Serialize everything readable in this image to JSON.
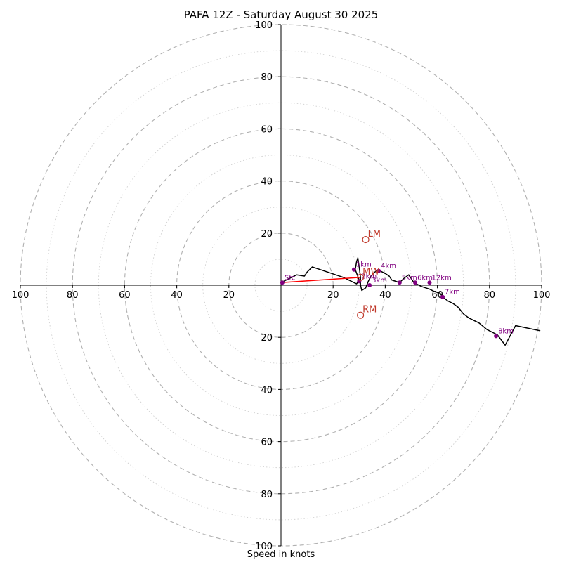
{
  "chart_data": {
    "type": "hodograph",
    "title": "PAFA 12Z - Saturday August 30 2025",
    "xlabel": "Speed in knots",
    "axis_range": [
      -100,
      100
    ],
    "ring_labels_major": [
      20,
      40,
      60,
      80,
      100
    ],
    "x_tick_labels": [
      "100",
      "80",
      "60",
      "40",
      "20",
      "20",
      "40",
      "60",
      "80",
      "100"
    ],
    "y_tick_labels": [
      "100",
      "80",
      "60",
      "40",
      "20",
      "20",
      "40",
      "60",
      "80",
      "100"
    ],
    "colors": {
      "trace": "#000000",
      "height_marker": "#800080",
      "storm_motion": "#c0392b",
      "mean_wind_vector": "#ff0000",
      "grid": "#b0b0b0"
    },
    "trace": [
      [
        0,
        1
      ],
      [
        4,
        3
      ],
      [
        6,
        4
      ],
      [
        9,
        3.5
      ],
      [
        10,
        5
      ],
      [
        12,
        7
      ],
      [
        15,
        6
      ],
      [
        18,
        5
      ],
      [
        21,
        4
      ],
      [
        24,
        3
      ],
      [
        27,
        1.5
      ],
      [
        29,
        0.5
      ],
      [
        30,
        2
      ],
      [
        28.5,
        6
      ],
      [
        29,
        9
      ],
      [
        29.5,
        10.5
      ],
      [
        30,
        7
      ],
      [
        30.5,
        3
      ],
      [
        30.5,
        0
      ],
      [
        31,
        -2
      ],
      [
        32.5,
        -1
      ],
      [
        33.5,
        1.5
      ],
      [
        34.5,
        3.5
      ],
      [
        35.5,
        4.5
      ],
      [
        36.5,
        5.5
      ],
      [
        38,
        5.5
      ],
      [
        39,
        5
      ],
      [
        40,
        4.5
      ],
      [
        41.5,
        3.5
      ],
      [
        42.5,
        2
      ],
      [
        44,
        1.5
      ],
      [
        45.5,
        1
      ],
      [
        47,
        2.5
      ],
      [
        49,
        4
      ],
      [
        51,
        1
      ],
      [
        54,
        -0.5
      ],
      [
        57,
        -1.5
      ],
      [
        59,
        -2.5
      ],
      [
        61,
        -3
      ],
      [
        62,
        -4.5
      ],
      [
        64,
        -6
      ],
      [
        66,
        -7
      ],
      [
        68,
        -8.5
      ],
      [
        70,
        -11
      ],
      [
        72,
        -12.5
      ],
      [
        76,
        -14.5
      ],
      [
        79,
        -17
      ],
      [
        83,
        -19
      ],
      [
        86,
        -23
      ],
      [
        90,
        -15.5
      ],
      [
        99.5,
        -17.5
      ]
    ],
    "height_markers": [
      {
        "label": "Sfc",
        "u": 0.5,
        "v": 1
      },
      {
        "label": "1km",
        "u": 28,
        "v": 6
      },
      {
        "label": "2km",
        "u": 30,
        "v": 1.5
      },
      {
        "label": "3km",
        "u": 34,
        "v": 0
      },
      {
        "label": "4km",
        "u": 37.5,
        "v": 5.5
      },
      {
        "label": "5km",
        "u": 45.5,
        "v": 1
      },
      {
        "label": "6km",
        "u": 51.5,
        "v": 1
      },
      {
        "label": "12km",
        "u": 57,
        "v": 1
      },
      {
        "label": "7km",
        "u": 62,
        "v": -4.5
      },
      {
        "label": "8km",
        "u": 82.5,
        "v": -19.5
      }
    ],
    "storm_motions": [
      {
        "label": "LM",
        "u": 32.5,
        "v": 17.5
      },
      {
        "label": "MW",
        "u": 30.5,
        "v": 3
      },
      {
        "label": "RM",
        "u": 30.5,
        "v": -11.5
      }
    ],
    "mean_wind_vector": {
      "from": [
        0,
        1
      ],
      "to": [
        30.5,
        3
      ]
    }
  }
}
